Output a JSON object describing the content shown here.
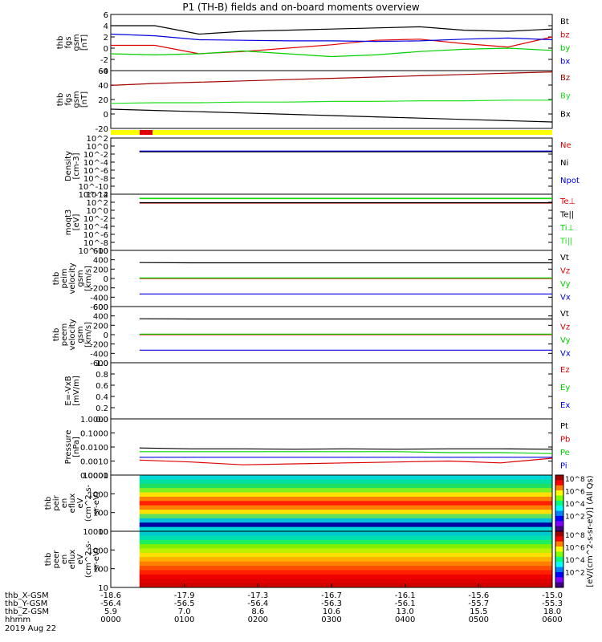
{
  "title": "P1 (TH-B) fields and on-board moments overview",
  "colors": {
    "black": "#000000",
    "red": "#e00000",
    "green": "#00d000",
    "blue": "#0000e0",
    "darkred": "#a00000",
    "lime": "#20e020",
    "yellow": "#ffff00",
    "purple": "#8000a0",
    "teal": "#008080"
  },
  "time_axis": {
    "rows": [
      {
        "label": "thb_X-GSM",
        "values": [
          "-18.6",
          "-17.9",
          "-17.3",
          "-16.7",
          "-16.1",
          "-15.6",
          "-15.0"
        ]
      },
      {
        "label": "thb_Y-GSM",
        "values": [
          "-56.4",
          "-56.5",
          "-56.4",
          "-56.3",
          "-56.1",
          "-55.7",
          "-55.3"
        ]
      },
      {
        "label": "thb_Z-GSM",
        "values": [
          "5.9",
          "7.0",
          "8.6",
          "10.6",
          "13.0",
          "15.5",
          "18.0"
        ]
      },
      {
        "label": "hhmm",
        "values": [
          "0000",
          "0100",
          "0200",
          "0300",
          "0400",
          "0500",
          "0600"
        ]
      }
    ],
    "date": "2019 Aug 22"
  },
  "colorbar": {
    "label": "[eV/(cm^2-s-sr-eV)] (All Qs)",
    "ticks_top": [
      "10^8",
      "10^6",
      "10^4",
      "10^2"
    ],
    "ticks_bottom": [
      "10^8",
      "10^6",
      "10^4",
      "10^2"
    ]
  },
  "chart_data": [
    {
      "type": "line",
      "ylabel": [
        "thb",
        "fgs",
        "gsm",
        "[nT]"
      ],
      "ylim": [
        -4,
        6
      ],
      "ticks": [
        "6",
        "4",
        "2",
        "0",
        "-2",
        "-4"
      ],
      "legend": [
        "Bt",
        "bz",
        "by",
        "bx"
      ],
      "series": [
        {
          "name": "Bt",
          "values": [
            4.0,
            4.0,
            2.5,
            3.0,
            3.2,
            3.4,
            3.6,
            3.8,
            3.2,
            3.0,
            3.4
          ]
        },
        {
          "name": "bz",
          "values": [
            0.5,
            0.5,
            -1.0,
            -0.6,
            0.0,
            0.6,
            1.4,
            1.6,
            0.8,
            0.2,
            2.0
          ]
        },
        {
          "name": "by",
          "values": [
            -1.0,
            -1.2,
            -1.0,
            -0.5,
            -1.0,
            -1.5,
            -1.2,
            -0.6,
            -0.2,
            0.0,
            -0.4
          ]
        },
        {
          "name": "bx",
          "values": [
            2.5,
            2.2,
            1.5,
            1.4,
            1.3,
            1.3,
            1.2,
            1.3,
            1.6,
            1.8,
            1.5
          ]
        }
      ]
    },
    {
      "type": "line",
      "ylabel": [
        "thb",
        "fgs",
        "gsm",
        "[nT]"
      ],
      "ylim": [
        -30,
        60
      ],
      "ticks": [
        "60",
        "40",
        "20",
        "0",
        "-20"
      ],
      "legend": [
        "Bz",
        "By",
        "Bx"
      ],
      "series": [
        {
          "name": "Bz",
          "values": [
            37,
            40,
            42,
            44,
            46,
            48,
            50,
            52,
            54,
            56,
            58
          ]
        },
        {
          "name": "By",
          "values": [
            9,
            10,
            10,
            11,
            11,
            12,
            12,
            13,
            13,
            14,
            14
          ]
        },
        {
          "name": "Bx",
          "values": [
            0,
            -2,
            -4,
            -6,
            -8,
            -10,
            -12,
            -14,
            -16,
            -18,
            -20
          ]
        }
      ]
    },
    {
      "type": "line",
      "ylabel": [
        "Density",
        "[cm-3]"
      ],
      "ylim": [
        -13,
        3
      ],
      "ticks": [
        "10^2",
        "10^0",
        "10^-2",
        "10^-4",
        "10^-6",
        "10^-8",
        "10^-10",
        "10^-12"
      ],
      "legend": [
        "Ne",
        "Ni",
        "Npot"
      ],
      "series": [
        {
          "name": "Ne",
          "values": [
            -0.8,
            -0.8,
            -0.8,
            -0.8,
            -0.8,
            -0.8,
            -0.8,
            -0.8,
            -0.8,
            -0.8
          ]
        },
        {
          "name": "Ni",
          "values": [
            -0.9,
            -0.9,
            -0.9,
            -0.9,
            -0.9,
            -0.9,
            -0.9,
            -0.9,
            -0.9,
            -0.9
          ]
        },
        {
          "name": "Npot",
          "values": [
            -0.7,
            -0.7,
            -0.7,
            -0.7,
            -0.7,
            -0.7,
            -0.7,
            -0.7,
            -0.7,
            -0.7
          ]
        }
      ]
    },
    {
      "type": "line",
      "ylabel": [
        "moqt3",
        "[eV]"
      ],
      "ylim": [
        -10,
        4
      ],
      "ticks": [
        "10^4",
        "10^2",
        "10^0",
        "10^-2",
        "10^-4",
        "10^-6",
        "10^-8",
        "10^-10"
      ],
      "legend": [
        "Te⊥",
        "Te||",
        "Ti⊥",
        "Ti||"
      ],
      "series": [
        {
          "name": "Te⊥",
          "values": [
            1.8,
            1.8,
            1.8,
            1.8,
            1.8,
            1.8,
            1.8,
            1.8,
            1.8
          ]
        },
        {
          "name": "Te||",
          "values": [
            1.9,
            1.9,
            1.9,
            1.9,
            1.9,
            1.9,
            1.9,
            1.9,
            1.9
          ]
        },
        {
          "name": "Ti⊥",
          "values": [
            2.9,
            2.9,
            2.9,
            2.9,
            2.9,
            2.9,
            2.9,
            2.9,
            2.9
          ]
        },
        {
          "name": "Ti||",
          "values": [
            3.0,
            3.0,
            3.0,
            3.0,
            3.0,
            3.0,
            3.0,
            3.0,
            3.0
          ]
        }
      ]
    },
    {
      "type": "line",
      "ylabel": [
        "thb",
        "peim",
        "velocity",
        "gsm",
        "[km/s]"
      ],
      "ylim": [
        -600,
        600
      ],
      "ticks": [
        "600",
        "400",
        "200",
        "0",
        "-200",
        "-400",
        "-600"
      ],
      "legend": [
        "Vt",
        "Vz",
        "Vy",
        "Vx"
      ],
      "series": [
        {
          "name": "Vt",
          "values": [
            340,
            335,
            335,
            335,
            335,
            335,
            335,
            335,
            335
          ]
        },
        {
          "name": "Vz",
          "values": [
            0,
            0,
            0,
            0,
            0,
            0,
            0,
            0,
            0
          ]
        },
        {
          "name": "Vy",
          "values": [
            10,
            10,
            10,
            10,
            10,
            10,
            10,
            10,
            10
          ]
        },
        {
          "name": "Vx",
          "values": [
            -330,
            -330,
            -330,
            -330,
            -330,
            -330,
            -330,
            -330,
            -330
          ]
        }
      ]
    },
    {
      "type": "line",
      "ylabel": [
        "thb",
        "peem",
        "velocity",
        "gsm",
        "[km/s]"
      ],
      "ylim": [
        -600,
        600
      ],
      "ticks": [
        "600",
        "400",
        "200",
        "0",
        "-200",
        "-400",
        "-600"
      ],
      "legend": [
        "Vt",
        "Vz",
        "Vy",
        "Vx"
      ],
      "series": [
        {
          "name": "Vt",
          "values": [
            340,
            335,
            335,
            335,
            335,
            335,
            335,
            335,
            335
          ]
        },
        {
          "name": "Vz",
          "values": [
            0,
            0,
            0,
            0,
            0,
            0,
            0,
            0,
            0
          ]
        },
        {
          "name": "Vy",
          "values": [
            10,
            10,
            10,
            10,
            10,
            10,
            10,
            10,
            10
          ]
        },
        {
          "name": "Vx",
          "values": [
            -330,
            -330,
            -330,
            -330,
            -330,
            -330,
            -330,
            -330,
            -330
          ]
        }
      ]
    },
    {
      "type": "line",
      "ylabel": [
        "E=-VxB",
        "[mV/m]"
      ],
      "ylim": [
        0,
        1.0
      ],
      "ticks": [
        "1.0",
        "0.8",
        "0.6",
        "0.4",
        "0.2",
        "0.0"
      ],
      "legend": [
        "Ez",
        "Ey",
        "Ex"
      ],
      "series": []
    },
    {
      "type": "line",
      "ylabel": [
        "Pressure",
        "[nPa]"
      ],
      "ylim": [
        -3,
        0
      ],
      "ticks": [
        "1.0000",
        "0.1000",
        "0.0100",
        "0.0010",
        "0.0001"
      ],
      "legend": [
        "Pt",
        "Pb",
        "Pe",
        "Pi"
      ],
      "series": [
        {
          "name": "Pt",
          "values": [
            -1.55,
            -1.6,
            -1.6,
            -1.62,
            -1.6,
            -1.62,
            -1.6,
            -1.6,
            -1.62
          ]
        },
        {
          "name": "Pb",
          "values": [
            -2.2,
            -2.3,
            -2.45,
            -2.4,
            -2.35,
            -2.3,
            -2.25,
            -2.35,
            -2.1
          ]
        },
        {
          "name": "Pe",
          "values": [
            -1.75,
            -1.75,
            -1.75,
            -1.75,
            -1.75,
            -1.75,
            -1.8,
            -1.8,
            -1.85
          ]
        },
        {
          "name": "Pi",
          "values": [
            -2.05,
            -2.05,
            -2.05,
            -2.05,
            -2.05,
            -2.05,
            -2.05,
            -2.05,
            -2.05
          ]
        }
      ]
    },
    {
      "type": "heatmap",
      "ylabel": [
        "thb",
        "peir",
        "en",
        "eflux",
        "eV",
        "(cm^2-s-",
        "sr-eV)"
      ],
      "ticks": [
        "10000",
        "1000",
        "100",
        "10"
      ]
    },
    {
      "type": "heatmap",
      "ylabel": [
        "thb",
        "peer",
        "en",
        "eflux",
        "eV",
        "(cm^2-s-",
        "sr-eV)"
      ],
      "ticks": [
        "10000",
        "1000",
        "100",
        "10"
      ]
    }
  ]
}
